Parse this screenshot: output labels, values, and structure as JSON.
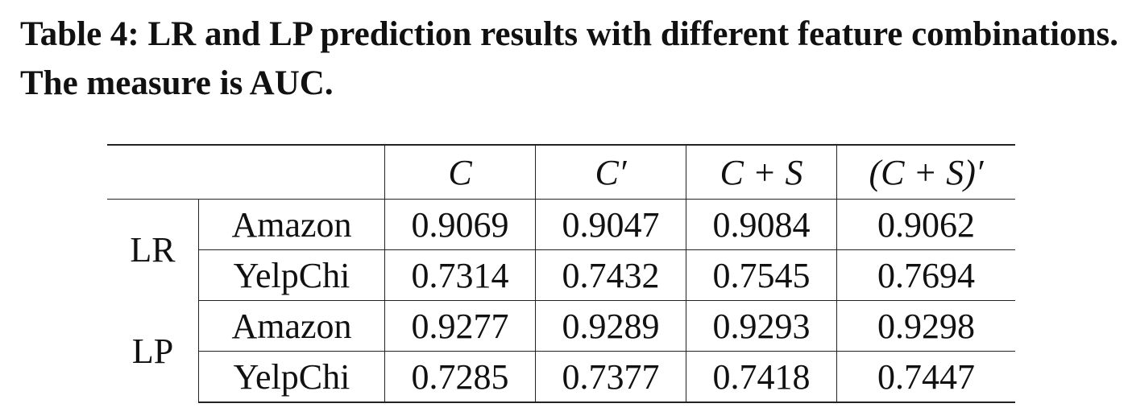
{
  "caption": "Table 4: LR and LP prediction results with different feature combinations. The measure is AUC.",
  "table": {
    "header": [
      "C",
      "C′",
      "C + S",
      "(C + S)′"
    ],
    "groups": [
      {
        "name": "LR",
        "rows": [
          {
            "dataset": "Amazon",
            "values": [
              0.9069,
              0.9047,
              0.9084,
              0.9062
            ]
          },
          {
            "dataset": "YelpChi",
            "values": [
              0.7314,
              0.7432,
              0.7545,
              0.7694
            ]
          }
        ]
      },
      {
        "name": "LP",
        "rows": [
          {
            "dataset": "Amazon",
            "values": [
              0.9277,
              0.9289,
              0.9293,
              0.9298
            ]
          },
          {
            "dataset": "YelpChi",
            "values": [
              0.7285,
              0.7377,
              0.7418,
              0.7447
            ]
          }
        ]
      }
    ]
  }
}
